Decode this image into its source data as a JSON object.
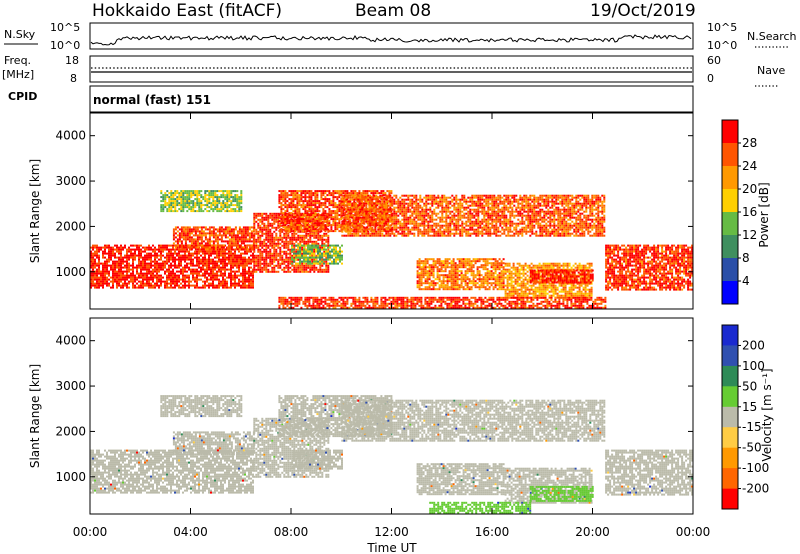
{
  "header": {
    "station": "Hokkaido East (fitACF)",
    "beam": "Beam 08",
    "date": "19/Oct/2019"
  },
  "strips": {
    "nsky": {
      "label": "N.Sky",
      "tick_top": "10^5",
      "tick_bottom": "10^0",
      "right_tick_top": "10^5",
      "right_tick_bottom": "10^0",
      "right_label": "N.Search"
    },
    "freq": {
      "label": "Freq.",
      "unit": "[MHz]",
      "tick_top": "18",
      "tick_bottom": "8",
      "right_tick_top": "60",
      "right_tick_bottom": "0",
      "right_label": "Nave"
    },
    "cpid": {
      "label": "CPID",
      "text": "normal (fast) 151"
    }
  },
  "colors": {
    "power": [
      "#0000ff",
      "#2a4fa8",
      "#3f8f5f",
      "#66bb44",
      "#ffd000",
      "#ff9900",
      "#ff5500",
      "#ff0000"
    ],
    "velocity": [
      "#ff0000",
      "#ff6600",
      "#ff9900",
      "#ffcc44",
      "#bbbbaa",
      "#66cc33",
      "#2e8b57",
      "#3050b0",
      "#1a2ad0"
    ],
    "ground_scatter": "#bbbbaa"
  },
  "chart_data": [
    {
      "type": "heatmap",
      "panel": "power",
      "ylabel": "Slant Range [km]",
      "yticks": [
        "1000",
        "2000",
        "3000",
        "4000"
      ],
      "ylim": [
        180,
        4500
      ],
      "xlim": [
        0,
        24
      ],
      "colorbar": {
        "label": "Power [dB]",
        "ticks": [
          "4",
          "8",
          "12",
          "16",
          "20",
          "24",
          "28"
        ],
        "range": [
          0,
          32
        ]
      },
      "regions": [
        {
          "x": [
            0,
            6.5
          ],
          "y": [
            650,
            1600
          ],
          "value": 29
        },
        {
          "x": [
            3.3,
            6.5
          ],
          "y": [
            1500,
            2000
          ],
          "value": 27
        },
        {
          "x": [
            2.8,
            6.0
          ],
          "y": [
            2350,
            2800
          ],
          "value": 15
        },
        {
          "x": [
            6.5,
            9.5
          ],
          "y": [
            1000,
            2300
          ],
          "value": 28
        },
        {
          "x": [
            7.5,
            12.0
          ],
          "y": [
            1900,
            2800
          ],
          "value": 27
        },
        {
          "x": [
            10.0,
            20.5
          ],
          "y": [
            1800,
            2700
          ],
          "value": 26
        },
        {
          "x": [
            20.5,
            24
          ],
          "y": [
            600,
            1600
          ],
          "value": 28
        },
        {
          "x": [
            13.0,
            16.5
          ],
          "y": [
            600,
            1300
          ],
          "value": 24
        },
        {
          "x": [
            16.5,
            20.0
          ],
          "y": [
            450,
            1200
          ],
          "value": 22
        },
        {
          "x": [
            17.5,
            20.0
          ],
          "y": [
            750,
            1050
          ],
          "value": 30
        },
        {
          "x": [
            7.5,
            20.5
          ],
          "y": [
            200,
            450
          ],
          "value": 28
        },
        {
          "x": [
            8.0,
            10.0
          ],
          "y": [
            1200,
            1600
          ],
          "value": 14
        }
      ]
    },
    {
      "type": "heatmap",
      "panel": "velocity",
      "ylabel": "Slant Range [km]",
      "yticks": [
        "1000",
        "2000",
        "3000",
        "4000"
      ],
      "ylim": [
        180,
        4500
      ],
      "xlim": [
        0,
        24
      ],
      "xlabel": "Time UT",
      "xticks": [
        "00:00",
        "04:00",
        "08:00",
        "12:00",
        "16:00",
        "20:00",
        "00:00"
      ],
      "colorbar": {
        "label": "Velocity [m s⁻¹]",
        "ticks": [
          "200",
          "100",
          "50",
          "15",
          "-15",
          "-50",
          "-100",
          "-200"
        ],
        "range": [
          -250,
          250
        ]
      },
      "regions": [
        {
          "x": [
            0,
            6.5
          ],
          "y": [
            650,
            1600
          ],
          "value": 0
        },
        {
          "x": [
            3.3,
            6.5
          ],
          "y": [
            1500,
            2000
          ],
          "value": 0
        },
        {
          "x": [
            2.8,
            6.0
          ],
          "y": [
            2350,
            2800
          ],
          "value": 0
        },
        {
          "x": [
            6.5,
            9.5
          ],
          "y": [
            1000,
            2300
          ],
          "value": 0
        },
        {
          "x": [
            7.5,
            12.0
          ],
          "y": [
            1900,
            2800
          ],
          "value": 0
        },
        {
          "x": [
            10.0,
            20.5
          ],
          "y": [
            1800,
            2700
          ],
          "value": 0
        },
        {
          "x": [
            20.5,
            24
          ],
          "y": [
            600,
            1600
          ],
          "value": 0
        },
        {
          "x": [
            13.0,
            16.5
          ],
          "y": [
            600,
            1300
          ],
          "value": 0
        },
        {
          "x": [
            16.5,
            20.0
          ],
          "y": [
            450,
            1200
          ],
          "value": 0
        },
        {
          "x": [
            13.5,
            17.5
          ],
          "y": [
            200,
            450
          ],
          "value": 35
        },
        {
          "x": [
            17.5,
            20.0
          ],
          "y": [
            450,
            800
          ],
          "value": 40
        },
        {
          "x": [
            8.0,
            10.0
          ],
          "y": [
            1200,
            1600
          ],
          "value": 0
        }
      ]
    }
  ]
}
